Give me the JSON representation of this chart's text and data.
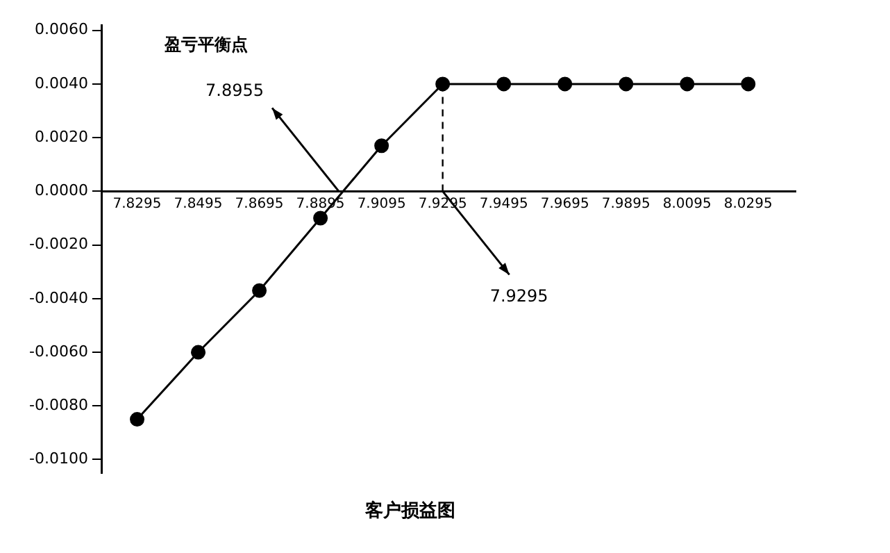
{
  "chart_data": {
    "type": "line",
    "title": "客户损益图",
    "x": [
      7.8295,
      7.8495,
      7.8695,
      7.8895,
      7.9095,
      7.9295,
      7.9495,
      7.9695,
      7.9895,
      8.0095,
      8.0295
    ],
    "series": [
      {
        "color": "#000000",
        "values": [
          -0.0085,
          -0.006,
          -0.0037,
          -0.001,
          0.0017,
          0.004,
          0.004,
          0.004,
          0.004,
          0.004,
          0.004
        ]
      }
    ],
    "xlim": [
      7.818,
      8.045
    ],
    "xticks": [
      7.8295,
      7.8495,
      7.8695,
      7.8895,
      7.9095,
      7.9295,
      7.9495,
      7.9695,
      7.9895,
      8.0095,
      8.0295
    ],
    "ylim": [
      -0.0105,
      0.0062
    ],
    "yticks": [
      {
        "value": -0.01,
        "label": "-0.0100"
      },
      {
        "value": -0.008,
        "label": "-0.0080"
      },
      {
        "value": -0.006,
        "label": "-0.0060"
      },
      {
        "value": -0.004,
        "label": "-0.0040"
      },
      {
        "value": -0.002,
        "label": "-0.0020"
      },
      {
        "value": 0,
        "label": "0.0000"
      },
      {
        "value": 0.002,
        "label": "0.0020"
      },
      {
        "value": 0.004,
        "label": "0.0040"
      },
      {
        "value": 0.006,
        "label": "0.0060"
      }
    ],
    "ref_lines": [
      {
        "axis": "x",
        "value": 7.9295,
        "line_style": "dashed"
      }
    ],
    "annotations": [
      "盈亏平衡点",
      {
        "text": "7.8955",
        "x": 7.8955,
        "y": 0
      },
      {
        "text": "7.9295",
        "x": 7.9295,
        "y": 0
      }
    ],
    "marker": "circle",
    "line_style": "solid",
    "grid": false,
    "legend": false
  }
}
